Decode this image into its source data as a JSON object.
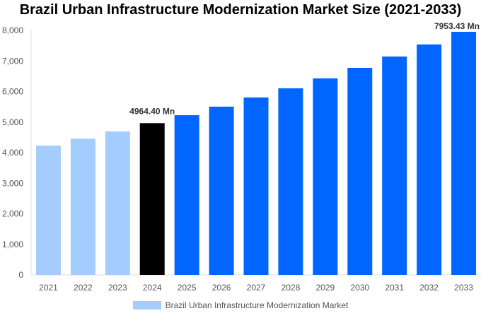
{
  "chart_data": {
    "type": "bar",
    "title": "Brazil Urban Infrastructure Modernization Market Size (2021-2033)",
    "categories": [
      "2021",
      "2022",
      "2023",
      "2024",
      "2025",
      "2026",
      "2027",
      "2028",
      "2029",
      "2030",
      "2031",
      "2032",
      "2033"
    ],
    "series": [
      {
        "name": "Brazil Urban Infrastructure Modernization Market",
        "values": [
          4230,
          4460,
          4695,
          4964.4,
          5225,
          5505,
          5805,
          6105,
          6430,
          6775,
          7145,
          7540,
          7953.43
        ]
      }
    ],
    "ylim": [
      0,
      8000
    ],
    "yticks": [
      0,
      1000,
      2000,
      3000,
      4000,
      5000,
      6000,
      7000,
      8000
    ],
    "ytick_labels": [
      "0",
      "1,000",
      "2,000",
      "3,000",
      "4,000",
      "5,000",
      "6,000",
      "7,000",
      "8,000"
    ],
    "annotations": [
      {
        "category": "2024",
        "text": "4964.40 Mn"
      },
      {
        "category": "2033",
        "text": "7953.43 Mn"
      }
    ],
    "colors": {
      "historical": "#a4cdfd",
      "current": "#000000",
      "forecast": "#0066ff"
    },
    "legend_placement": "bottom",
    "grid": false
  }
}
